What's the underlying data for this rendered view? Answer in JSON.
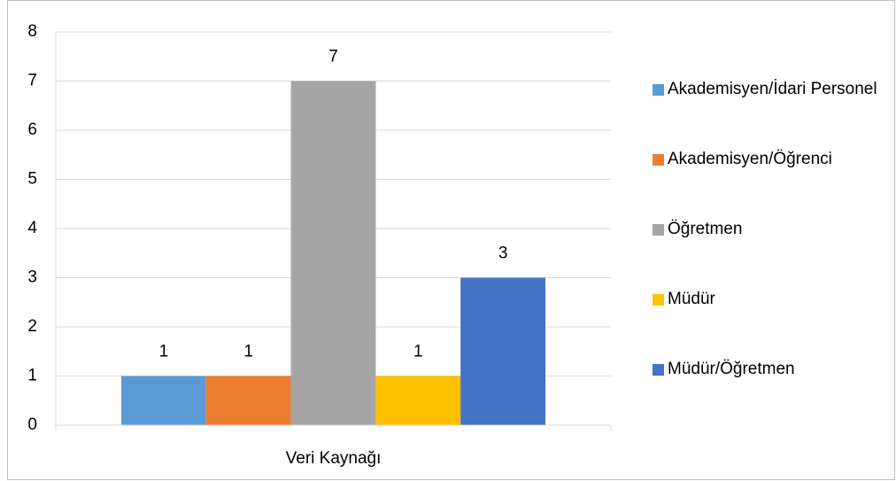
{
  "chart_data": {
    "type": "bar",
    "categories": [
      "Veri Kaynağı"
    ],
    "series": [
      {
        "name": "Akademisyen/İdari Personel",
        "color": "#5b9bd5",
        "values": [
          1
        ]
      },
      {
        "name": "Akademisyen/Öğrenci",
        "color": "#ed7d31",
        "values": [
          1
        ]
      },
      {
        "name": "Öğretmen",
        "color": "#a5a5a5",
        "values": [
          7
        ]
      },
      {
        "name": "Müdür",
        "color": "#ffc000",
        "values": [
          1
        ]
      },
      {
        "name": "Müdür/Öğretmen",
        "color": "#4472c4",
        "values": [
          3
        ]
      }
    ],
    "ylim": [
      0,
      8
    ],
    "yticks": [
      0,
      1,
      2,
      3,
      4,
      5,
      6,
      7,
      8
    ],
    "grid": true,
    "legend": "right"
  }
}
